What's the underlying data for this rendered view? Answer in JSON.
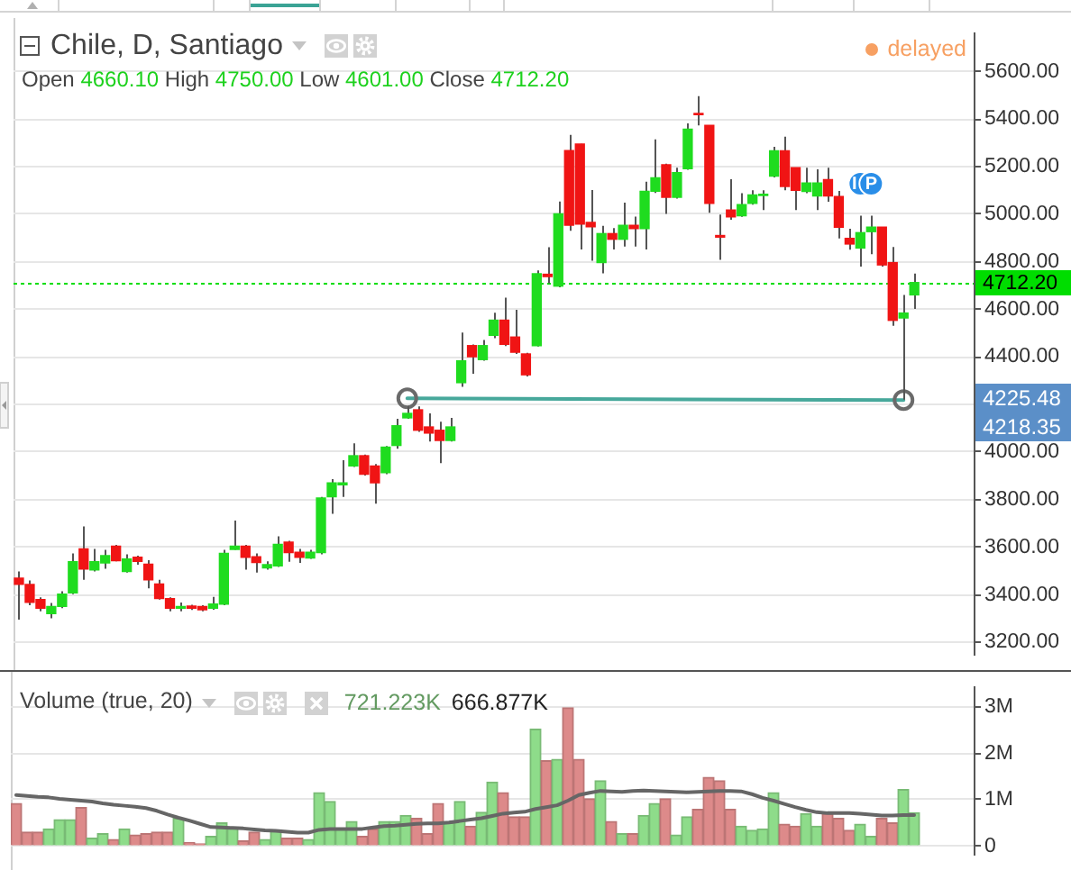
{
  "chart_data": [
    {
      "type": "candlestick",
      "title": "Chile, D, Santiago",
      "subtitle": "Open 4660.10 High 4750.00 Low 4601.00 Close 4712.20",
      "categories": [
        null,
        null,
        null,
        null,
        null,
        null,
        null,
        null,
        null,
        null,
        null,
        null,
        null,
        null,
        null,
        null,
        null,
        null,
        null,
        null,
        null,
        null,
        null,
        null,
        null,
        null,
        null,
        null,
        null,
        null,
        null,
        null,
        null,
        null,
        null,
        null,
        null,
        null,
        null,
        null,
        null,
        null,
        null,
        null,
        null,
        null,
        null,
        null,
        null,
        null,
        null,
        null,
        null,
        null,
        null,
        null,
        null,
        null,
        null,
        null,
        null,
        null,
        null,
        null,
        null,
        null,
        null,
        null,
        null,
        null,
        null,
        null,
        null,
        null,
        null,
        null,
        null,
        null,
        null,
        null,
        null,
        null,
        null,
        null
      ],
      "series": [
        {
          "ohlc": [
            [
              3469,
              3497,
              3295,
              3443
            ],
            [
              3443,
              3459,
              3355,
              3367
            ],
            [
              3379,
              3388,
              3330,
              3343
            ],
            [
              3320,
              3365,
              3300,
              3350
            ],
            [
              3350,
              3414,
              3343,
              3402
            ],
            [
              3407,
              3573,
              3402,
              3538
            ],
            [
              3592,
              3687,
              3462,
              3507
            ],
            [
              3504,
              3592,
              3497,
              3538
            ],
            [
              3533,
              3588,
              3509,
              3564
            ],
            [
              3604,
              3609,
              3540,
              3542
            ],
            [
              3497,
              3569,
              3493,
              3550
            ],
            [
              3557,
              3564,
              3526,
              3540
            ],
            [
              3528,
              3545,
              3426,
              3462
            ],
            [
              3445,
              3462,
              3379,
              3383
            ],
            [
              3383,
              3388,
              3330,
              3343
            ],
            [
              3343,
              3367,
              3330,
              3350
            ],
            [
              3352,
              3357,
              3335,
              3343
            ],
            [
              3350,
              3355,
              3330,
              3336
            ],
            [
              3343,
              3390,
              3336,
              3360
            ],
            [
              3360,
              3588,
              3355,
              3573
            ],
            [
              3590,
              3711,
              3588,
              3604
            ],
            [
              3604,
              3609,
              3505,
              3557
            ],
            [
              3559,
              3573,
              3493,
              3535
            ],
            [
              3512,
              3540,
              3505,
              3526
            ],
            [
              3521,
              3645,
              3516,
              3611
            ],
            [
              3621,
              3626,
              3538,
              3576
            ],
            [
              3578,
              3592,
              3533,
              3557
            ],
            [
              3554,
              3588,
              3550,
              3578
            ],
            [
              3576,
              3811,
              3569,
              3806
            ],
            [
              3811,
              3885,
              3740,
              3870
            ],
            [
              3861,
              3965,
              3811,
              3870
            ],
            [
              3941,
              4036,
              3937,
              3984
            ],
            [
              3984,
              3989,
              3901,
              3906
            ],
            [
              3941,
              3949,
              3782,
              3870
            ],
            [
              3913,
              4025,
              3906,
              4020
            ],
            [
              4027,
              4139,
              4013,
              4110
            ],
            [
              4143,
              4191,
              4139,
              4162
            ],
            [
              4177,
              4191,
              4084,
              4091
            ],
            [
              4105,
              4162,
              4044,
              4079
            ],
            [
              4091,
              4127,
              3953,
              4048
            ],
            [
              4048,
              4143,
              4044,
              4105
            ],
            [
              4291,
              4502,
              4274,
              4383
            ],
            [
              4447,
              4452,
              4329,
              4400
            ],
            [
              4388,
              4471,
              4383,
              4447
            ],
            [
              4490,
              4585,
              4478,
              4554
            ],
            [
              4554,
              4649,
              4445,
              4452
            ],
            [
              4483,
              4597,
              4412,
              4419
            ],
            [
              4412,
              4417,
              4317,
              4324
            ],
            [
              4447,
              4763,
              4443,
              4749
            ],
            [
              4747,
              4861,
              4709,
              4737
            ],
            [
              4697,
              5053,
              4692,
              5001
            ],
            [
              5267,
              5333,
              4930,
              4953
            ],
            [
              5295,
              5295,
              4851,
              4958
            ],
            [
              4965,
              5101,
              4804,
              4946
            ],
            [
              4796,
              4951,
              4751,
              4918
            ],
            [
              4918,
              4941,
              4851,
              4894
            ],
            [
              4894,
              5048,
              4863,
              4953
            ],
            [
              4953,
              4989,
              4863,
              4939
            ],
            [
              4939,
              5136,
              4851,
              5096
            ],
            [
              5096,
              5314,
              5089,
              5153
            ],
            [
              5207,
              5212,
              5001,
              5070
            ],
            [
              5070,
              5195,
              5065,
              5174
            ],
            [
              5191,
              5381,
              5186,
              5357
            ],
            [
              5423,
              5496,
              5373,
              5418
            ],
            [
              5373,
              5373,
              5005,
              5045
            ],
            [
              4910,
              4998,
              4808,
              4903
            ],
            [
              5017,
              5147,
              4976,
              4988
            ],
            [
              4993,
              5088,
              4988,
              5040
            ],
            [
              5045,
              5100,
              5040,
              5081
            ],
            [
              5078,
              5100,
              5017,
              5083
            ],
            [
              5159,
              5283,
              5154,
              5266
            ],
            [
              5266,
              5325,
              5100,
              5116
            ],
            [
              5195,
              5195,
              5017,
              5100
            ],
            [
              5095,
              5195,
              5088,
              5131
            ],
            [
              5076,
              5188,
              5017,
              5131
            ],
            [
              5145,
              5195,
              5052,
              5076
            ],
            [
              5074,
              5097,
              4898,
              4945
            ],
            [
              4898,
              4938,
              4850,
              4874
            ],
            [
              4857,
              4993,
              4779,
              4922
            ],
            [
              4926,
              4993,
              4831,
              4945
            ],
            [
              4945,
              4945,
              4779,
              4786
            ],
            [
              4796,
              4862,
              4530,
              4553
            ],
            [
              4563,
              4660,
              4220,
              4584
            ],
            [
              4660.1,
              4750,
              4601,
              4712.2
            ]
          ],
          "colors": [
            "#f01414",
            "#f01414",
            "#f01414",
            "#1fdc1f",
            "#1fdc1f",
            "#1fdc1f",
            "#f01414",
            "#1fdc1f",
            "#1fdc1f",
            "#f01414",
            "#1fdc1f",
            "#f01414",
            "#f01414",
            "#f01414",
            "#f01414",
            "#1fdc1f",
            "#f01414",
            "#f01414",
            "#1fdc1f",
            "#1fdc1f",
            "#1fdc1f",
            "#f01414",
            "#f01414",
            "#1fdc1f",
            "#1fdc1f",
            "#f01414",
            "#f01414",
            "#1fdc1f",
            "#1fdc1f",
            "#1fdc1f",
            "#1fdc1f",
            "#1fdc1f",
            "#f01414",
            "#f01414",
            "#1fdc1f",
            "#1fdc1f",
            "#1fdc1f",
            "#f01414",
            "#f01414",
            "#f01414",
            "#1fdc1f",
            "#1fdc1f",
            "#f01414",
            "#1fdc1f",
            "#1fdc1f",
            "#f01414",
            "#f01414",
            "#f01414",
            "#1fdc1f",
            "#f01414",
            "#1fdc1f",
            "#f01414",
            "#f01414",
            "#f01414",
            "#1fdc1f",
            "#f01414",
            "#1fdc1f",
            "#f01414",
            "#1fdc1f",
            "#1fdc1f",
            "#f01414",
            "#1fdc1f",
            "#1fdc1f",
            "#f01414",
            "#f01414",
            "#f01414",
            "#f01414",
            "#1fdc1f",
            "#1fdc1f",
            "#1fdc1f",
            "#1fdc1f",
            "#f01414",
            "#f01414",
            "#1fdc1f",
            "#1fdc1f",
            "#f01414",
            "#f01414",
            "#f01414",
            "#1fdc1f",
            "#1fdc1f",
            "#f01414",
            "#f01414",
            "#1fdc1f",
            "#1fdc1f"
          ]
        },
        {
          "type": "line",
          "color": "#47a89b",
          "marker": "circle",
          "values": [
            null,
            null,
            null,
            null,
            null,
            null,
            null,
            null,
            null,
            null,
            null,
            null,
            null,
            null,
            null,
            null,
            null,
            null,
            null,
            null,
            null,
            null,
            null,
            null,
            null,
            null,
            null,
            null,
            null,
            null,
            null,
            null,
            null,
            null,
            null,
            null,
            4225,
            null,
            null,
            null,
            null,
            null,
            null,
            null,
            null,
            null,
            null,
            null,
            null,
            null,
            null,
            null,
            null,
            null,
            null,
            null,
            null,
            null,
            null,
            null,
            null,
            null,
            null,
            null,
            null,
            null,
            null,
            null,
            null,
            null,
            null,
            null,
            null,
            null,
            null,
            null,
            null,
            null,
            null,
            null,
            null,
            null,
            4218,
            null
          ]
        },
        {
          "type": "scatter",
          "color": "#2a8ee8",
          "marker": "circle",
          "values": [
            null,
            null,
            null,
            null,
            null,
            null,
            null,
            null,
            null,
            null,
            null,
            null,
            null,
            null,
            null,
            null,
            null,
            null,
            null,
            null,
            null,
            null,
            null,
            null,
            null,
            null,
            null,
            null,
            null,
            null,
            null,
            null,
            null,
            null,
            null,
            null,
            null,
            null,
            null,
            null,
            null,
            null,
            null,
            null,
            null,
            null,
            null,
            null,
            null,
            null,
            null,
            null,
            null,
            null,
            null,
            null,
            null,
            null,
            null,
            null,
            null,
            null,
            null,
            null,
            null,
            null,
            null,
            null,
            null,
            null,
            null,
            null,
            null,
            null,
            null,
            null,
            null,
            null,
            5128,
            5128,
            null,
            null,
            null,
            null
          ],
          "value_labels": [
            null,
            null,
            null,
            null,
            null,
            null,
            null,
            null,
            null,
            null,
            null,
            null,
            null,
            null,
            null,
            null,
            null,
            null,
            null,
            null,
            null,
            null,
            null,
            null,
            null,
            null,
            null,
            null,
            null,
            null,
            null,
            null,
            null,
            null,
            null,
            null,
            null,
            null,
            null,
            null,
            null,
            null,
            null,
            null,
            null,
            null,
            null,
            null,
            null,
            null,
            null,
            null,
            null,
            null,
            null,
            null,
            null,
            null,
            null,
            null,
            null,
            null,
            null,
            null,
            null,
            null,
            null,
            null,
            null,
            null,
            null,
            null,
            null,
            null,
            null,
            null,
            null,
            null,
            "I",
            "P",
            null,
            null,
            null,
            null
          ]
        }
      ],
      "ylim": [
        3150,
        5757
      ],
      "yticks": [
        {
          "value": 3200,
          "label": "3200.00"
        },
        {
          "value": 3400,
          "label": "3400.00"
        },
        {
          "value": 3600,
          "label": "3600.00"
        },
        {
          "value": 3800,
          "label": "3800.00"
        },
        {
          "value": 4000,
          "label": "4000.00"
        },
        {
          "value": 4200,
          "label": null
        },
        {
          "value": 4400,
          "label": "4400.00"
        },
        {
          "value": 4600,
          "label": "4600.00"
        },
        {
          "value": 4800,
          "label": "4800.00"
        },
        {
          "value": 5000,
          "label": "5000.00"
        },
        {
          "value": 5200,
          "label": "5200.00"
        },
        {
          "value": 5400,
          "label": "5400.00"
        },
        {
          "value": 5600,
          "label": "5600.00"
        }
      ],
      "grid": "y",
      "tick_labels": "y",
      "ref_lines": [
        {
          "axis": "y",
          "value": 4712.2,
          "label": "4712.20",
          "color": "#00dd00",
          "line_style": "dotted"
        }
      ],
      "annotations": [
        "delayed",
        "4225.48",
        "4218.35"
      ]
    },
    {
      "type": "bar",
      "title": "Volume (true, 20)",
      "categories": [
        null,
        null,
        null,
        null,
        null,
        null,
        null,
        null,
        null,
        null,
        null,
        null,
        null,
        null,
        null,
        null,
        null,
        null,
        null,
        null,
        null,
        null,
        null,
        null,
        null,
        null,
        null,
        null,
        null,
        null,
        null,
        null,
        null,
        null,
        null,
        null,
        null,
        null,
        null,
        null,
        null,
        null,
        null,
        null,
        null,
        null,
        null,
        null,
        null,
        null,
        null,
        null,
        null,
        null,
        null,
        null,
        null,
        null,
        null,
        null,
        null,
        null,
        null,
        null,
        null,
        null,
        null,
        null,
        null,
        null,
        null,
        null,
        null,
        null,
        null,
        null,
        null,
        null,
        null,
        null,
        null,
        null,
        null,
        null
      ],
      "series": [
        {
          "values": [
            0.92,
            0.3,
            0.3,
            0.37,
            0.57,
            0.57,
            0.83,
            0.17,
            0.27,
            0.14,
            0.37,
            0.24,
            0.27,
            0.3,
            0.3,
            0.6,
            0.08,
            0.05,
            0.21,
            0.5,
            0.4,
            0.11,
            0.3,
            0.14,
            0.34,
            0.17,
            0.17,
            0.14,
            1.15,
            0.96,
            0.37,
            0.53,
            0.21,
            0.37,
            0.53,
            0.53,
            0.66,
            0.6,
            0.27,
            0.92,
            0.5,
            0.96,
            0.43,
            0.73,
            1.38,
            1.15,
            0.63,
            0.63,
            2.52,
            1.84,
            1.87,
            2.98,
            1.87,
            1.02,
            1.41,
            0.53,
            0.27,
            0.27,
            0.66,
            0.92,
            1.02,
            0.24,
            0.63,
            0.79,
            1.48,
            1.41,
            0.79,
            0.43,
            0.34,
            0.37,
            1.15,
            0.47,
            0.43,
            0.7,
            0.43,
            0.7,
            0.6,
            0.34,
            0.47,
            0.21,
            0.6,
            0.5,
            1.22,
            0.72
          ],
          "colors": [
            "#dd8a8a",
            "#dd8a8a",
            "#dd8a8a",
            "#8edc8a",
            "#8edc8a",
            "#8edc8a",
            "#dd8a8a",
            "#8edc8a",
            "#8edc8a",
            "#dd8a8a",
            "#8edc8a",
            "#dd8a8a",
            "#dd8a8a",
            "#dd8a8a",
            "#dd8a8a",
            "#8edc8a",
            "#dd8a8a",
            "#dd8a8a",
            "#8edc8a",
            "#8edc8a",
            "#8edc8a",
            "#dd8a8a",
            "#dd8a8a",
            "#8edc8a",
            "#8edc8a",
            "#dd8a8a",
            "#dd8a8a",
            "#8edc8a",
            "#8edc8a",
            "#8edc8a",
            "#8edc8a",
            "#8edc8a",
            "#dd8a8a",
            "#dd8a8a",
            "#8edc8a",
            "#8edc8a",
            "#8edc8a",
            "#dd8a8a",
            "#dd8a8a",
            "#dd8a8a",
            "#8edc8a",
            "#8edc8a",
            "#dd8a8a",
            "#8edc8a",
            "#8edc8a",
            "#dd8a8a",
            "#dd8a8a",
            "#dd8a8a",
            "#8edc8a",
            "#dd8a8a",
            "#8edc8a",
            "#dd8a8a",
            "#dd8a8a",
            "#dd8a8a",
            "#8edc8a",
            "#dd8a8a",
            "#8edc8a",
            "#dd8a8a",
            "#8edc8a",
            "#8edc8a",
            "#dd8a8a",
            "#8edc8a",
            "#8edc8a",
            "#dd8a8a",
            "#dd8a8a",
            "#dd8a8a",
            "#dd8a8a",
            "#8edc8a",
            "#8edc8a",
            "#8edc8a",
            "#8edc8a",
            "#dd8a8a",
            "#dd8a8a",
            "#8edc8a",
            "#8edc8a",
            "#dd8a8a",
            "#dd8a8a",
            "#dd8a8a",
            "#8edc8a",
            "#8edc8a",
            "#dd8a8a",
            "#dd8a8a",
            "#8edc8a",
            "#8edc8a"
          ]
        },
        {
          "type": "line",
          "color": "#666666",
          "values": [
            1.1,
            1.08,
            1.06,
            1.05,
            1.02,
            1.0,
            0.98,
            0.96,
            0.92,
            0.89,
            0.87,
            0.85,
            0.82,
            0.76,
            0.68,
            0.61,
            0.55,
            0.48,
            0.41,
            0.4,
            0.39,
            0.38,
            0.36,
            0.34,
            0.33,
            0.31,
            0.29,
            0.29,
            0.35,
            0.37,
            0.37,
            0.37,
            0.37,
            0.4,
            0.43,
            0.44,
            0.46,
            0.48,
            0.49,
            0.49,
            0.51,
            0.54,
            0.57,
            0.6,
            0.65,
            0.7,
            0.72,
            0.74,
            0.8,
            0.84,
            0.88,
            0.98,
            1.1,
            1.15,
            1.19,
            1.18,
            1.17,
            1.19,
            1.2,
            1.19,
            1.18,
            1.17,
            1.16,
            1.17,
            1.18,
            1.19,
            1.19,
            1.18,
            1.12,
            1.04,
            0.98,
            0.91,
            0.84,
            0.78,
            0.73,
            0.71,
            0.71,
            0.71,
            0.7,
            0.68,
            0.66,
            0.66,
            0.67,
            0.67
          ]
        }
      ],
      "ylim": [
        -0.17,
        3.41
      ],
      "yticks": [
        {
          "value": 0,
          "label": "0"
        },
        {
          "value": 1,
          "label": "1M"
        },
        {
          "value": 2,
          "label": "2M"
        },
        {
          "value": 3,
          "label": "3M"
        }
      ],
      "grid": "y",
      "tick_labels": "y",
      "annotations": [
        "721.223K",
        "666.877K"
      ]
    }
  ]
}
